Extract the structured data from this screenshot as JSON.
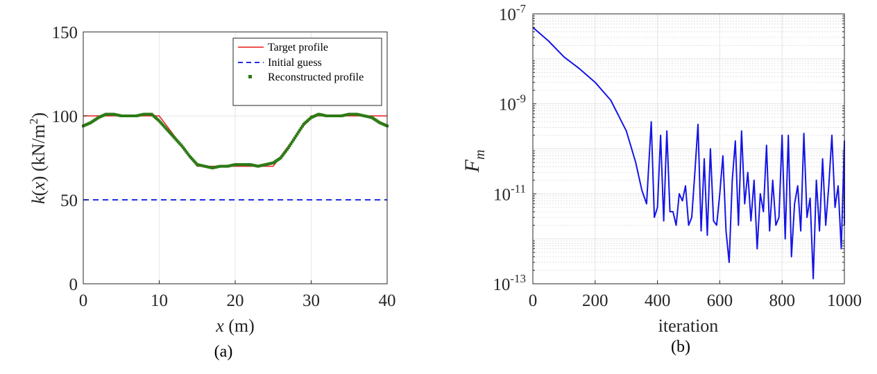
{
  "chart_data": [
    {
      "type": "line",
      "caption": "(a)",
      "xlabel_var": "x",
      "xlabel_unit": " (m)",
      "ylabel_func": "k",
      "ylabel_arg": "x",
      "ylabel_unit_a": " (kN/m",
      "ylabel_unit_sup": "2",
      "ylabel_unit_b": ")",
      "xlim": [
        0,
        40
      ],
      "ylim": [
        0,
        150
      ],
      "xticks": [
        0,
        10,
        20,
        30,
        40
      ],
      "yticks": [
        0,
        50,
        100,
        150
      ],
      "xtick_labels": [
        "0",
        "10",
        "20",
        "30",
        "40"
      ],
      "ytick_labels": [
        "0",
        "50",
        "100",
        "150"
      ],
      "grid": true,
      "legend_position": "top-right",
      "series": [
        {
          "name": "Target profile",
          "style": "solid",
          "color": "#e8191c",
          "x": [
            0,
            10,
            15,
            25,
            30,
            40
          ],
          "y": [
            100,
            100,
            70,
            70,
            100,
            100
          ]
        },
        {
          "name": "Initial guess",
          "style": "dashed",
          "color": "#1f2ee6",
          "x": [
            0,
            40
          ],
          "y": [
            50,
            50
          ]
        },
        {
          "name": "Reconstructed profile",
          "style": "markers",
          "color": "#2d7b16",
          "x": [
            0,
            1,
            2,
            3,
            4,
            5,
            6,
            7,
            8,
            9,
            10,
            11,
            12,
            13,
            14,
            15,
            16,
            17,
            18,
            19,
            20,
            21,
            22,
            23,
            24,
            25,
            26,
            27,
            28,
            29,
            30,
            31,
            32,
            33,
            34,
            35,
            36,
            37,
            38,
            39,
            40
          ],
          "y": [
            94,
            96,
            99,
            101,
            101,
            100,
            100,
            100,
            101,
            101,
            97,
            92,
            87,
            82,
            76,
            71,
            70,
            69,
            70,
            70,
            71,
            71,
            71,
            70,
            71,
            72,
            75,
            81,
            88,
            95,
            99,
            101,
            100,
            100,
            100,
            101,
            101,
            100,
            99,
            96,
            94
          ]
        }
      ]
    },
    {
      "type": "line",
      "caption": "(b)",
      "xlabel": "iteration",
      "ylabel_base": "F",
      "ylabel_sub": "m",
      "xlim": [
        0,
        1000
      ],
      "ylim_log10": [
        -13,
        -7
      ],
      "y_scale": "log",
      "xticks": [
        0,
        200,
        400,
        600,
        800,
        1000
      ],
      "xtick_labels": [
        "0",
        "200",
        "400",
        "600",
        "800",
        "1000"
      ],
      "ytick_exponents": [
        -13,
        -11,
        -9,
        -7
      ],
      "ytick_base": "10",
      "ytick_sups": [
        "-13",
        "-11",
        "-9",
        "-7"
      ],
      "grid": true,
      "series": [
        {
          "color": "#1414e6",
          "x": [
            0,
            50,
            100,
            150,
            200,
            250,
            300,
            330,
            350,
            365,
            375,
            380,
            390,
            400,
            410,
            420,
            430,
            440,
            450,
            460,
            470,
            480,
            490,
            500,
            510,
            520,
            530,
            540,
            550,
            560,
            570,
            580,
            590,
            600,
            610,
            620,
            630,
            640,
            650,
            660,
            670,
            680,
            690,
            700,
            710,
            720,
            730,
            740,
            750,
            760,
            770,
            780,
            790,
            800,
            810,
            820,
            830,
            840,
            850,
            860,
            870,
            880,
            890,
            900,
            910,
            920,
            930,
            940,
            950,
            960,
            970,
            980,
            990,
            1000,
            1010
          ],
          "y": [
            5e-08,
            2.5e-08,
            1.1e-08,
            6e-09,
            3e-09,
            1.2e-09,
            2.5e-10,
            5e-11,
            1.2e-11,
            6e-12,
            1e-10,
            4e-10,
            3e-12,
            5e-12,
            2e-10,
            2.5e-12,
            2.5e-10,
            4e-12,
            4e-12,
            2e-12,
            1e-11,
            7e-12,
            1.5e-11,
            2e-12,
            3e-12,
            3e-11,
            3.5e-10,
            1.5e-12,
            6e-11,
            1.2e-12,
            1e-10,
            2.5e-12,
            2e-12,
            1e-11,
            7e-11,
            1.5e-12,
            3e-13,
            2e-11,
            1.5e-10,
            2e-12,
            2.5e-10,
            6e-12,
            3e-11,
            2.5e-12,
            2e-11,
            6e-13,
            1e-11,
            4e-12,
            1.2e-10,
            1.5e-12,
            2e-11,
            2e-12,
            3e-12,
            2e-10,
            1e-12,
            2e-10,
            4e-13,
            6e-12,
            1.5e-11,
            1.5e-12,
            2.2e-10,
            3e-12,
            8e-12,
            1.3e-13,
            2e-11,
            1.5e-12,
            6e-11,
            2e-12,
            1.5e-11,
            2e-10,
            5e-12,
            1.5e-11,
            6e-13,
            1.5e-10,
            2e-12
          ]
        }
      ]
    }
  ]
}
